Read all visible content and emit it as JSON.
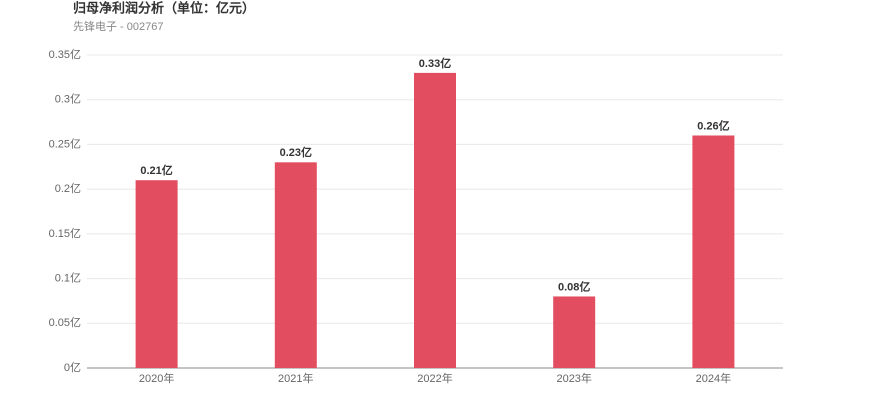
{
  "chart_data": {
    "type": "bar",
    "title": "归母净利润分析（单位：亿元）",
    "subtitle": "先锋电子 - 002767",
    "categories": [
      "2020年",
      "2021年",
      "2022年",
      "2023年",
      "2024年"
    ],
    "values": [
      0.21,
      0.23,
      0.33,
      0.08,
      0.26
    ],
    "value_labels": [
      "0.21亿",
      "0.23亿",
      "0.33亿",
      "0.08亿",
      "0.26亿"
    ],
    "color": "#e34d60",
    "ylim": [
      0,
      0.35
    ],
    "yticks": [
      {
        "value": 0,
        "label": "0亿"
      },
      {
        "value": 0.05,
        "label": "0.05亿"
      },
      {
        "value": 0.1,
        "label": "0.1亿"
      },
      {
        "value": 0.15,
        "label": "0.15亿"
      },
      {
        "value": 0.2,
        "label": "0.2亿"
      },
      {
        "value": 0.25,
        "label": "0.25亿"
      },
      {
        "value": 0.3,
        "label": "0.3亿"
      },
      {
        "value": 0.35,
        "label": "0.35亿"
      }
    ],
    "grid": true
  }
}
